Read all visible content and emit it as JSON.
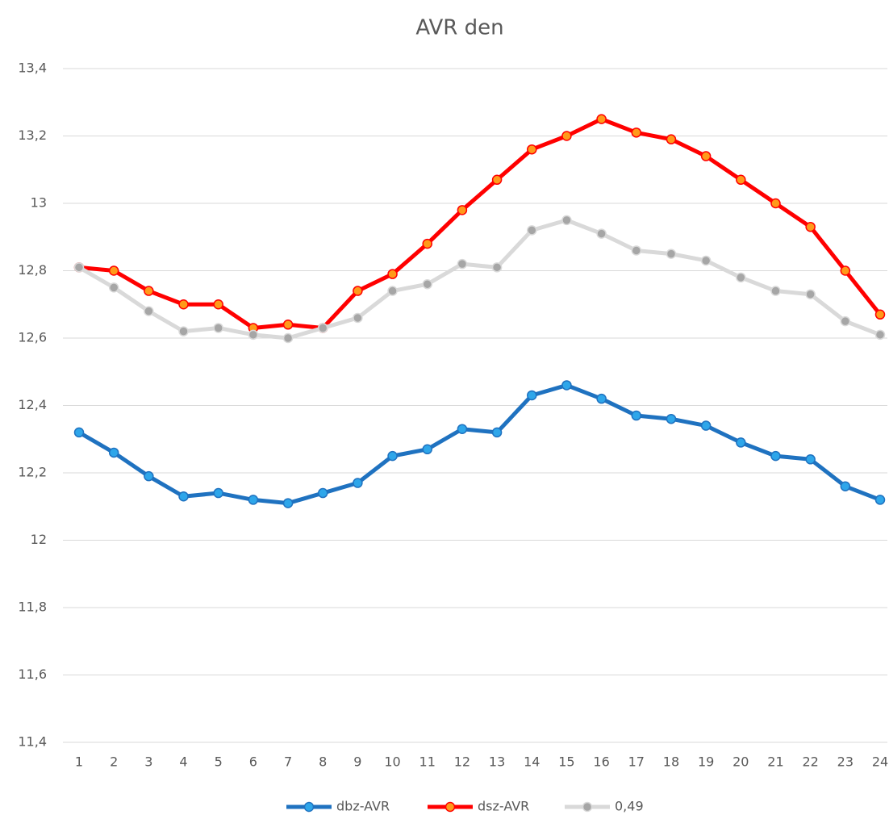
{
  "chart_data": {
    "type": "line",
    "title": "AVR den",
    "categories": [
      "1",
      "2",
      "3",
      "4",
      "5",
      "6",
      "7",
      "8",
      "9",
      "10",
      "11",
      "12",
      "13",
      "14",
      "15",
      "16",
      "17",
      "18",
      "19",
      "20",
      "21",
      "22",
      "23",
      "24"
    ],
    "series": [
      {
        "name": "dbz-AVR",
        "color": "#1f72c0",
        "marker_color": "#2ea6ea",
        "values": [
          12.32,
          12.26,
          12.19,
          12.13,
          12.14,
          12.12,
          12.11,
          12.14,
          12.17,
          12.25,
          12.27,
          12.33,
          12.32,
          12.43,
          12.46,
          12.42,
          12.37,
          12.36,
          12.34,
          12.29,
          12.25,
          12.24,
          12.16,
          12.12
        ]
      },
      {
        "name": "dsz-AVR",
        "color": "#ff0000",
        "marker_color": "#ff9a1a",
        "values": [
          12.81,
          12.8,
          12.74,
          12.7,
          12.7,
          12.63,
          12.64,
          12.63,
          12.74,
          12.79,
          12.88,
          12.98,
          13.07,
          13.16,
          13.2,
          13.25,
          13.21,
          13.19,
          13.14,
          13.07,
          13.0,
          12.93,
          12.8,
          12.67
        ]
      },
      {
        "name": "0,49",
        "color": "#d9d9d9",
        "marker_color": "#a6a6a6",
        "values": [
          12.81,
          12.75,
          12.68,
          12.62,
          12.63,
          12.61,
          12.6,
          12.63,
          12.66,
          12.74,
          12.76,
          12.82,
          12.81,
          12.92,
          12.95,
          12.91,
          12.86,
          12.85,
          12.83,
          12.78,
          12.74,
          12.73,
          12.65,
          12.61
        ]
      }
    ],
    "ylim": [
      11.4,
      13.4
    ],
    "yticks": [
      {
        "value": 11.4,
        "label": "11,4"
      },
      {
        "value": 11.6,
        "label": "11,6"
      },
      {
        "value": 11.8,
        "label": "11,8"
      },
      12,
      {
        "value": 12.2,
        "label": "12,2"
      },
      {
        "value": 12.4,
        "label": "12,4"
      },
      {
        "value": 12.6,
        "label": "12,6"
      },
      {
        "value": 12.8,
        "label": "12,8"
      },
      13,
      {
        "value": 13.2,
        "label": "13,2"
      },
      {
        "value": 13.4,
        "label": "13,4"
      }
    ],
    "grid": true,
    "legend": "bottom"
  }
}
